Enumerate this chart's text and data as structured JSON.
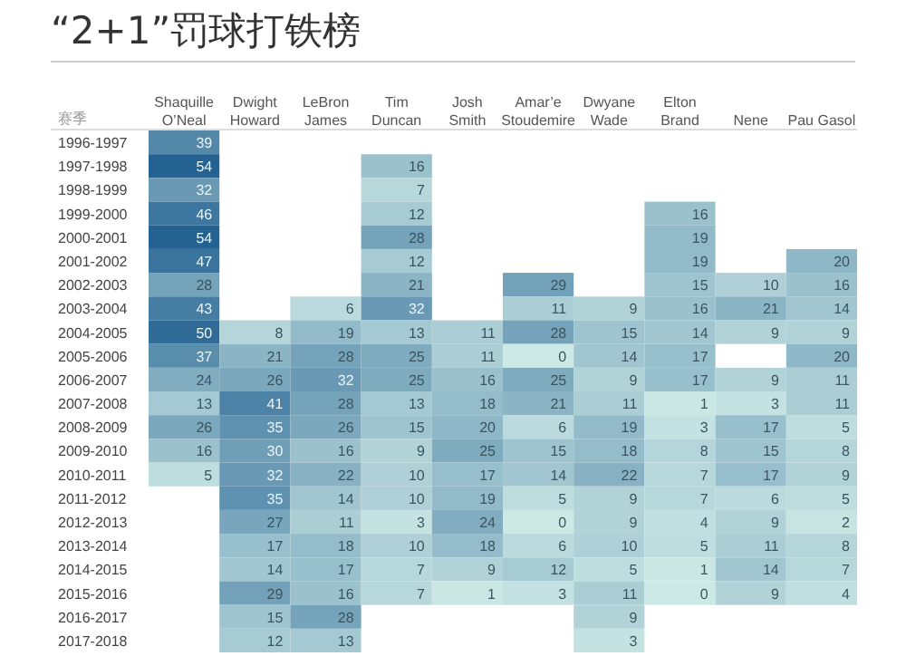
{
  "chart_data": {
    "type": "heatmap",
    "title": "“2+1”罚球打铁榜",
    "ylabel": "赛季",
    "data_labels": true,
    "categories": [
      "Shaquille O’Neal",
      "Dwight Howard",
      "LeBron James",
      "Tim Duncan",
      "Josh Smith",
      "Amar’e Stoudemire",
      "Dwyane Wade",
      "Elton Brand",
      "Nene",
      "Pau Gasol"
    ],
    "y_categories": [
      "1996-1997",
      "1997-1998",
      "1998-1999",
      "1999-2000",
      "2000-2001",
      "2001-2002",
      "2002-2003",
      "2003-2004",
      "2004-2005",
      "2005-2006",
      "2006-2007",
      "2007-2008",
      "2008-2009",
      "2009-2010",
      "2010-2011",
      "2011-2012",
      "2012-2013",
      "2013-2014",
      "2014-2015",
      "2015-2016",
      "2016-2017",
      "2017-2018"
    ],
    "cells": [
      [
        39,
        null,
        null,
        null,
        null,
        null,
        null,
        null,
        null,
        null
      ],
      [
        54,
        null,
        null,
        16,
        null,
        null,
        null,
        null,
        null,
        null
      ],
      [
        32,
        null,
        null,
        7,
        null,
        null,
        null,
        null,
        null,
        null
      ],
      [
        46,
        null,
        null,
        12,
        null,
        null,
        null,
        16,
        null,
        null
      ],
      [
        54,
        null,
        null,
        28,
        null,
        null,
        null,
        19,
        null,
        null
      ],
      [
        47,
        null,
        null,
        12,
        null,
        null,
        null,
        19,
        null,
        20
      ],
      [
        28,
        null,
        null,
        21,
        null,
        29,
        null,
        15,
        10,
        16
      ],
      [
        43,
        null,
        6,
        32,
        null,
        11,
        9,
        16,
        21,
        14
      ],
      [
        50,
        8,
        19,
        13,
        11,
        28,
        15,
        14,
        9,
        9
      ],
      [
        37,
        21,
        28,
        25,
        11,
        0,
        14,
        17,
        null,
        20
      ],
      [
        24,
        26,
        32,
        25,
        16,
        25,
        9,
        17,
        9,
        11
      ],
      [
        13,
        41,
        28,
        13,
        18,
        21,
        11,
        1,
        3,
        11
      ],
      [
        26,
        35,
        26,
        15,
        20,
        6,
        19,
        3,
        17,
        5
      ],
      [
        16,
        30,
        16,
        9,
        25,
        15,
        18,
        8,
        15,
        8
      ],
      [
        5,
        32,
        22,
        10,
        17,
        14,
        22,
        7,
        17,
        9
      ],
      [
        null,
        35,
        14,
        10,
        19,
        5,
        9,
        7,
        6,
        5
      ],
      [
        null,
        27,
        11,
        3,
        24,
        0,
        9,
        4,
        9,
        2
      ],
      [
        null,
        17,
        18,
        10,
        18,
        6,
        10,
        5,
        11,
        8
      ],
      [
        null,
        14,
        17,
        7,
        9,
        12,
        5,
        1,
        14,
        7
      ],
      [
        null,
        29,
        16,
        7,
        1,
        3,
        11,
        0,
        9,
        4
      ],
      [
        null,
        15,
        28,
        null,
        null,
        null,
        9,
        null,
        null,
        null
      ],
      [
        null,
        12,
        13,
        null,
        null,
        null,
        3,
        null,
        null,
        null
      ]
    ]
  }
}
